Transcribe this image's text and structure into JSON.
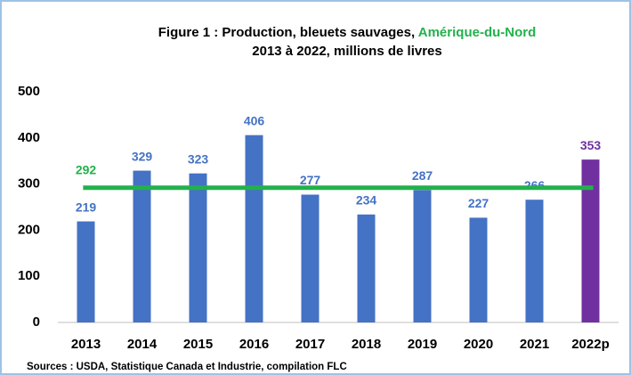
{
  "chart_data": {
    "type": "bar",
    "title": "Figure 1 : Production,  bleuets sauvages,",
    "title_highlight": "Amérique-du-Nord",
    "title_highlight_color": "#22b14c",
    "subtitle": "2013 à 2022, millions de livres",
    "source": "Sources : USDA, Statistique Canada et Industrie, compilation FLC",
    "categories": [
      "2013",
      "2014",
      "2015",
      "2016",
      "2017",
      "2018",
      "2019",
      "2020",
      "2021",
      "2022p"
    ],
    "values": [
      219,
      329,
      323,
      406,
      277,
      234,
      287,
      227,
      266,
      353
    ],
    "colors": [
      "#4472c4",
      "#4472c4",
      "#4472c4",
      "#4472c4",
      "#4472c4",
      "#4472c4",
      "#4472c4",
      "#4472c4",
      "#4472c4",
      "#7030a0"
    ],
    "reference_line": {
      "value": 292,
      "color": "#22b14c"
    },
    "ylim": [
      0,
      500
    ],
    "yticks": [
      0,
      100,
      200,
      300,
      400,
      500
    ],
    "grid": false
  }
}
